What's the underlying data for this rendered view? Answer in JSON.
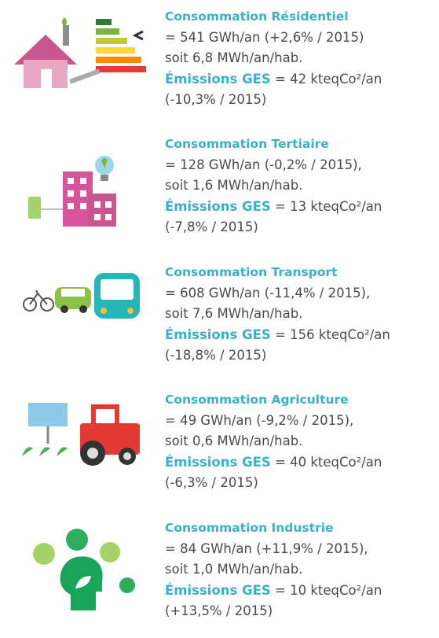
{
  "items": [
    {
      "title": "Consommation Résidentiel",
      "consumption": "= 541 GWh/an (+2,6% / 2015)",
      "per_capita": "soit 6,8 MWh/an/hab.",
      "emissions_label": "Émissions GES",
      "emissions": "= 42 kteqCo²/an",
      "change": "(-10,3% / 2015)"
    },
    {
      "title": "Consommation Tertiaire",
      "consumption": "= 128 GWh/an (-0,2% / 2015),",
      "per_capita": "soit 1,6 MWh/an/hab.",
      "emissions_label": "Émissions GES",
      "emissions": "= 13 kteqCo²/an",
      "change": "(-7,8% / 2015)"
    },
    {
      "title": "Consommation Transport",
      "consumption": "= 608 GWh/an (-11,4% / 2015),",
      "per_capita": "soit 7,6 MWh/an/hab.",
      "emissions_label": "Émissions GES",
      "emissions": "= 156 kteqCo²/an",
      "change": "(-18,8% / 2015)"
    },
    {
      "title": "Consommation Agriculture",
      "consumption": "= 49 GWh/an (-9,2% / 2015),",
      "per_capita": "soit 0,6 MWh/an/hab.",
      "emissions_label": "Émissions GES",
      "emissions": "= 40 kteqCo²/an",
      "change": "(-6,3% / 2015)"
    },
    {
      "title": "Consommation Industrie",
      "consumption": "= 84 GWh/an (+11,9% / 2015),",
      "per_capita": "soit 1,0 MWh/an/hab.",
      "emissions_label": "Émissions GES",
      "emissions": "= 10 kteqCo²/an",
      "change": "(+13,5% / 2015)"
    }
  ]
}
